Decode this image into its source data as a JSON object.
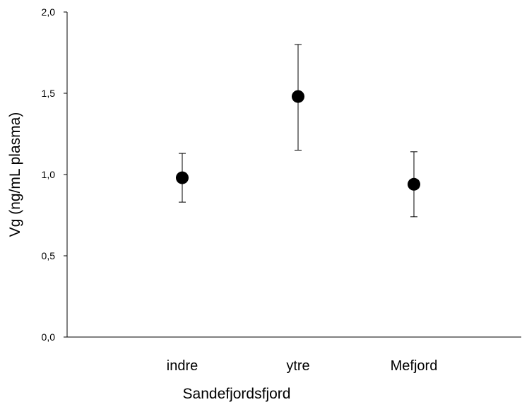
{
  "chart_data": {
    "type": "scatter",
    "title": "",
    "xlabel": "Sandefjordsfjord",
    "ylabel": "Vg (ng/mL plasma)",
    "categories": [
      "indre",
      "ytre",
      "Mefjord"
    ],
    "series": [
      {
        "values": [
          0.98,
          1.48,
          0.94
        ],
        "error_low": [
          0.83,
          1.15,
          0.74
        ],
        "error_high": [
          1.13,
          1.8,
          1.14
        ]
      }
    ],
    "ylim": [
      0.0,
      2.0
    ],
    "yticks": [
      0.0,
      0.5,
      1.0,
      1.5,
      2.0
    ],
    "ytick_labels": [
      "0,0",
      "0,5",
      "1,0",
      "1,5",
      "2,0"
    ],
    "grid": false,
    "marker_color": "#000000"
  }
}
